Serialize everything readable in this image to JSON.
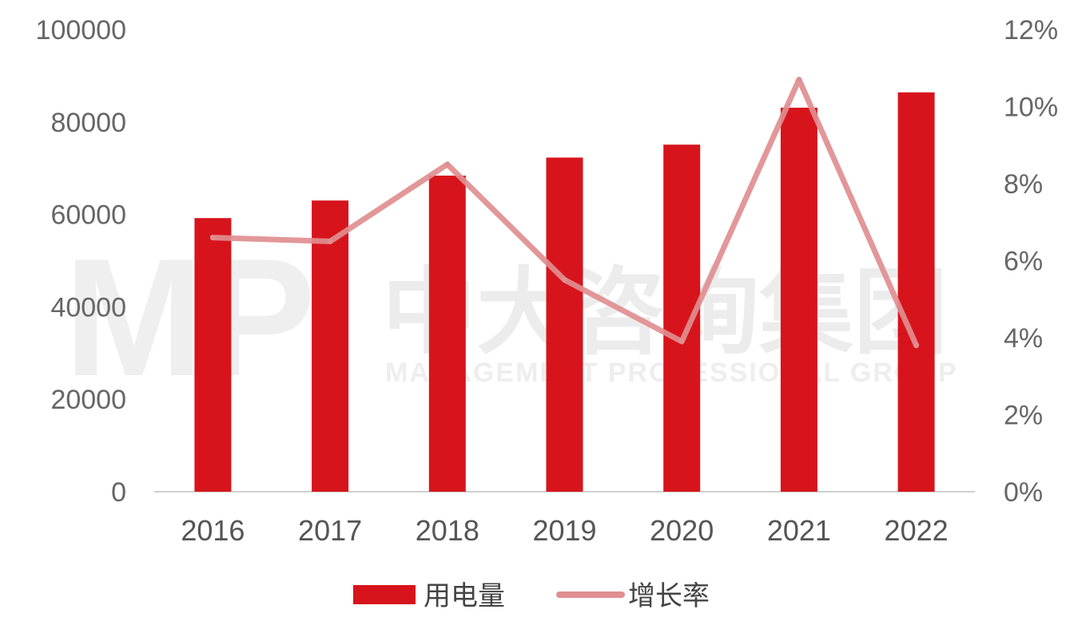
{
  "watermark": {
    "logo_text": "MP",
    "name_cn": "中大咨询集团",
    "name_en": "MANAGEMENT PROFESSIONAL GROUP"
  },
  "chart_data": {
    "type": "bar",
    "title": "",
    "xlabel": "",
    "ylabel": "",
    "categories": [
      "2016",
      "2017",
      "2018",
      "2019",
      "2020",
      "2021",
      "2022"
    ],
    "series": [
      {
        "name": "用电量",
        "type": "bar",
        "axis": "left",
        "color": "#d7141c",
        "values": [
          59200,
          63000,
          68400,
          72300,
          75100,
          83100,
          86400
        ]
      },
      {
        "name": "增长率",
        "type": "line",
        "axis": "right",
        "color": "#e08e90",
        "values": [
          6.6,
          6.5,
          8.5,
          5.5,
          3.9,
          10.7,
          3.8
        ]
      }
    ],
    "y_left": {
      "min": 0,
      "max": 100000,
      "ticks": [
        0,
        20000,
        40000,
        60000,
        80000,
        100000
      ],
      "tick_labels": [
        "0",
        "20000",
        "40000",
        "60000",
        "80000",
        "100000"
      ]
    },
    "y_right": {
      "min": 0,
      "max": 12,
      "ticks": [
        0,
        2,
        4,
        6,
        8,
        10,
        12
      ],
      "tick_labels": [
        "0%",
        "2%",
        "4%",
        "6%",
        "8%",
        "10%",
        "12%"
      ]
    },
    "grid": false,
    "legend": {
      "position": "bottom-center",
      "entries": [
        "用电量",
        "增长率"
      ]
    }
  }
}
